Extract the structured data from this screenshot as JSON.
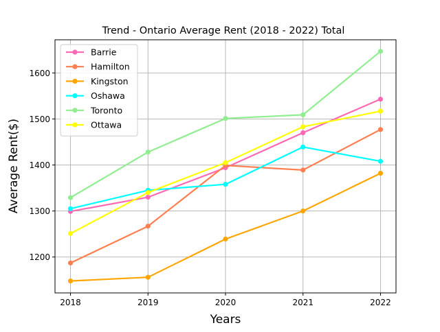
{
  "chart_data": {
    "type": "line",
    "title": "Trend - Ontario Average Rent (2018 - 2022) Total",
    "xlabel": "Years",
    "ylabel": "Average Rent($)",
    "x": [
      2018,
      2019,
      2020,
      2021,
      2022
    ],
    "xlim": [
      2017.8,
      2022.2
    ],
    "ylim": [
      1122,
      1672
    ],
    "yticks": [
      1200,
      1300,
      1400,
      1500,
      1600
    ],
    "grid": true,
    "legend_position": "top-left",
    "series": [
      {
        "name": "Barrie",
        "color": "#ff69b4",
        "values": [
          1299,
          1330,
          1394,
          1470,
          1543
        ]
      },
      {
        "name": "Hamilton",
        "color": "#ff7f50",
        "values": [
          1187,
          1267,
          1399,
          1389,
          1477
        ]
      },
      {
        "name": "Kingston",
        "color": "#ffa500",
        "values": [
          1148,
          1156,
          1239,
          1300,
          1382
        ]
      },
      {
        "name": "Oshawa",
        "color": "#00ffff",
        "values": [
          1305,
          1345,
          1358,
          1439,
          1408
        ]
      },
      {
        "name": "Toronto",
        "color": "#90ee90",
        "values": [
          1329,
          1428,
          1501,
          1509,
          1647
        ]
      },
      {
        "name": "Ottawa",
        "color": "#ffff00",
        "values": [
          1251,
          1340,
          1405,
          1483,
          1517
        ]
      }
    ]
  }
}
